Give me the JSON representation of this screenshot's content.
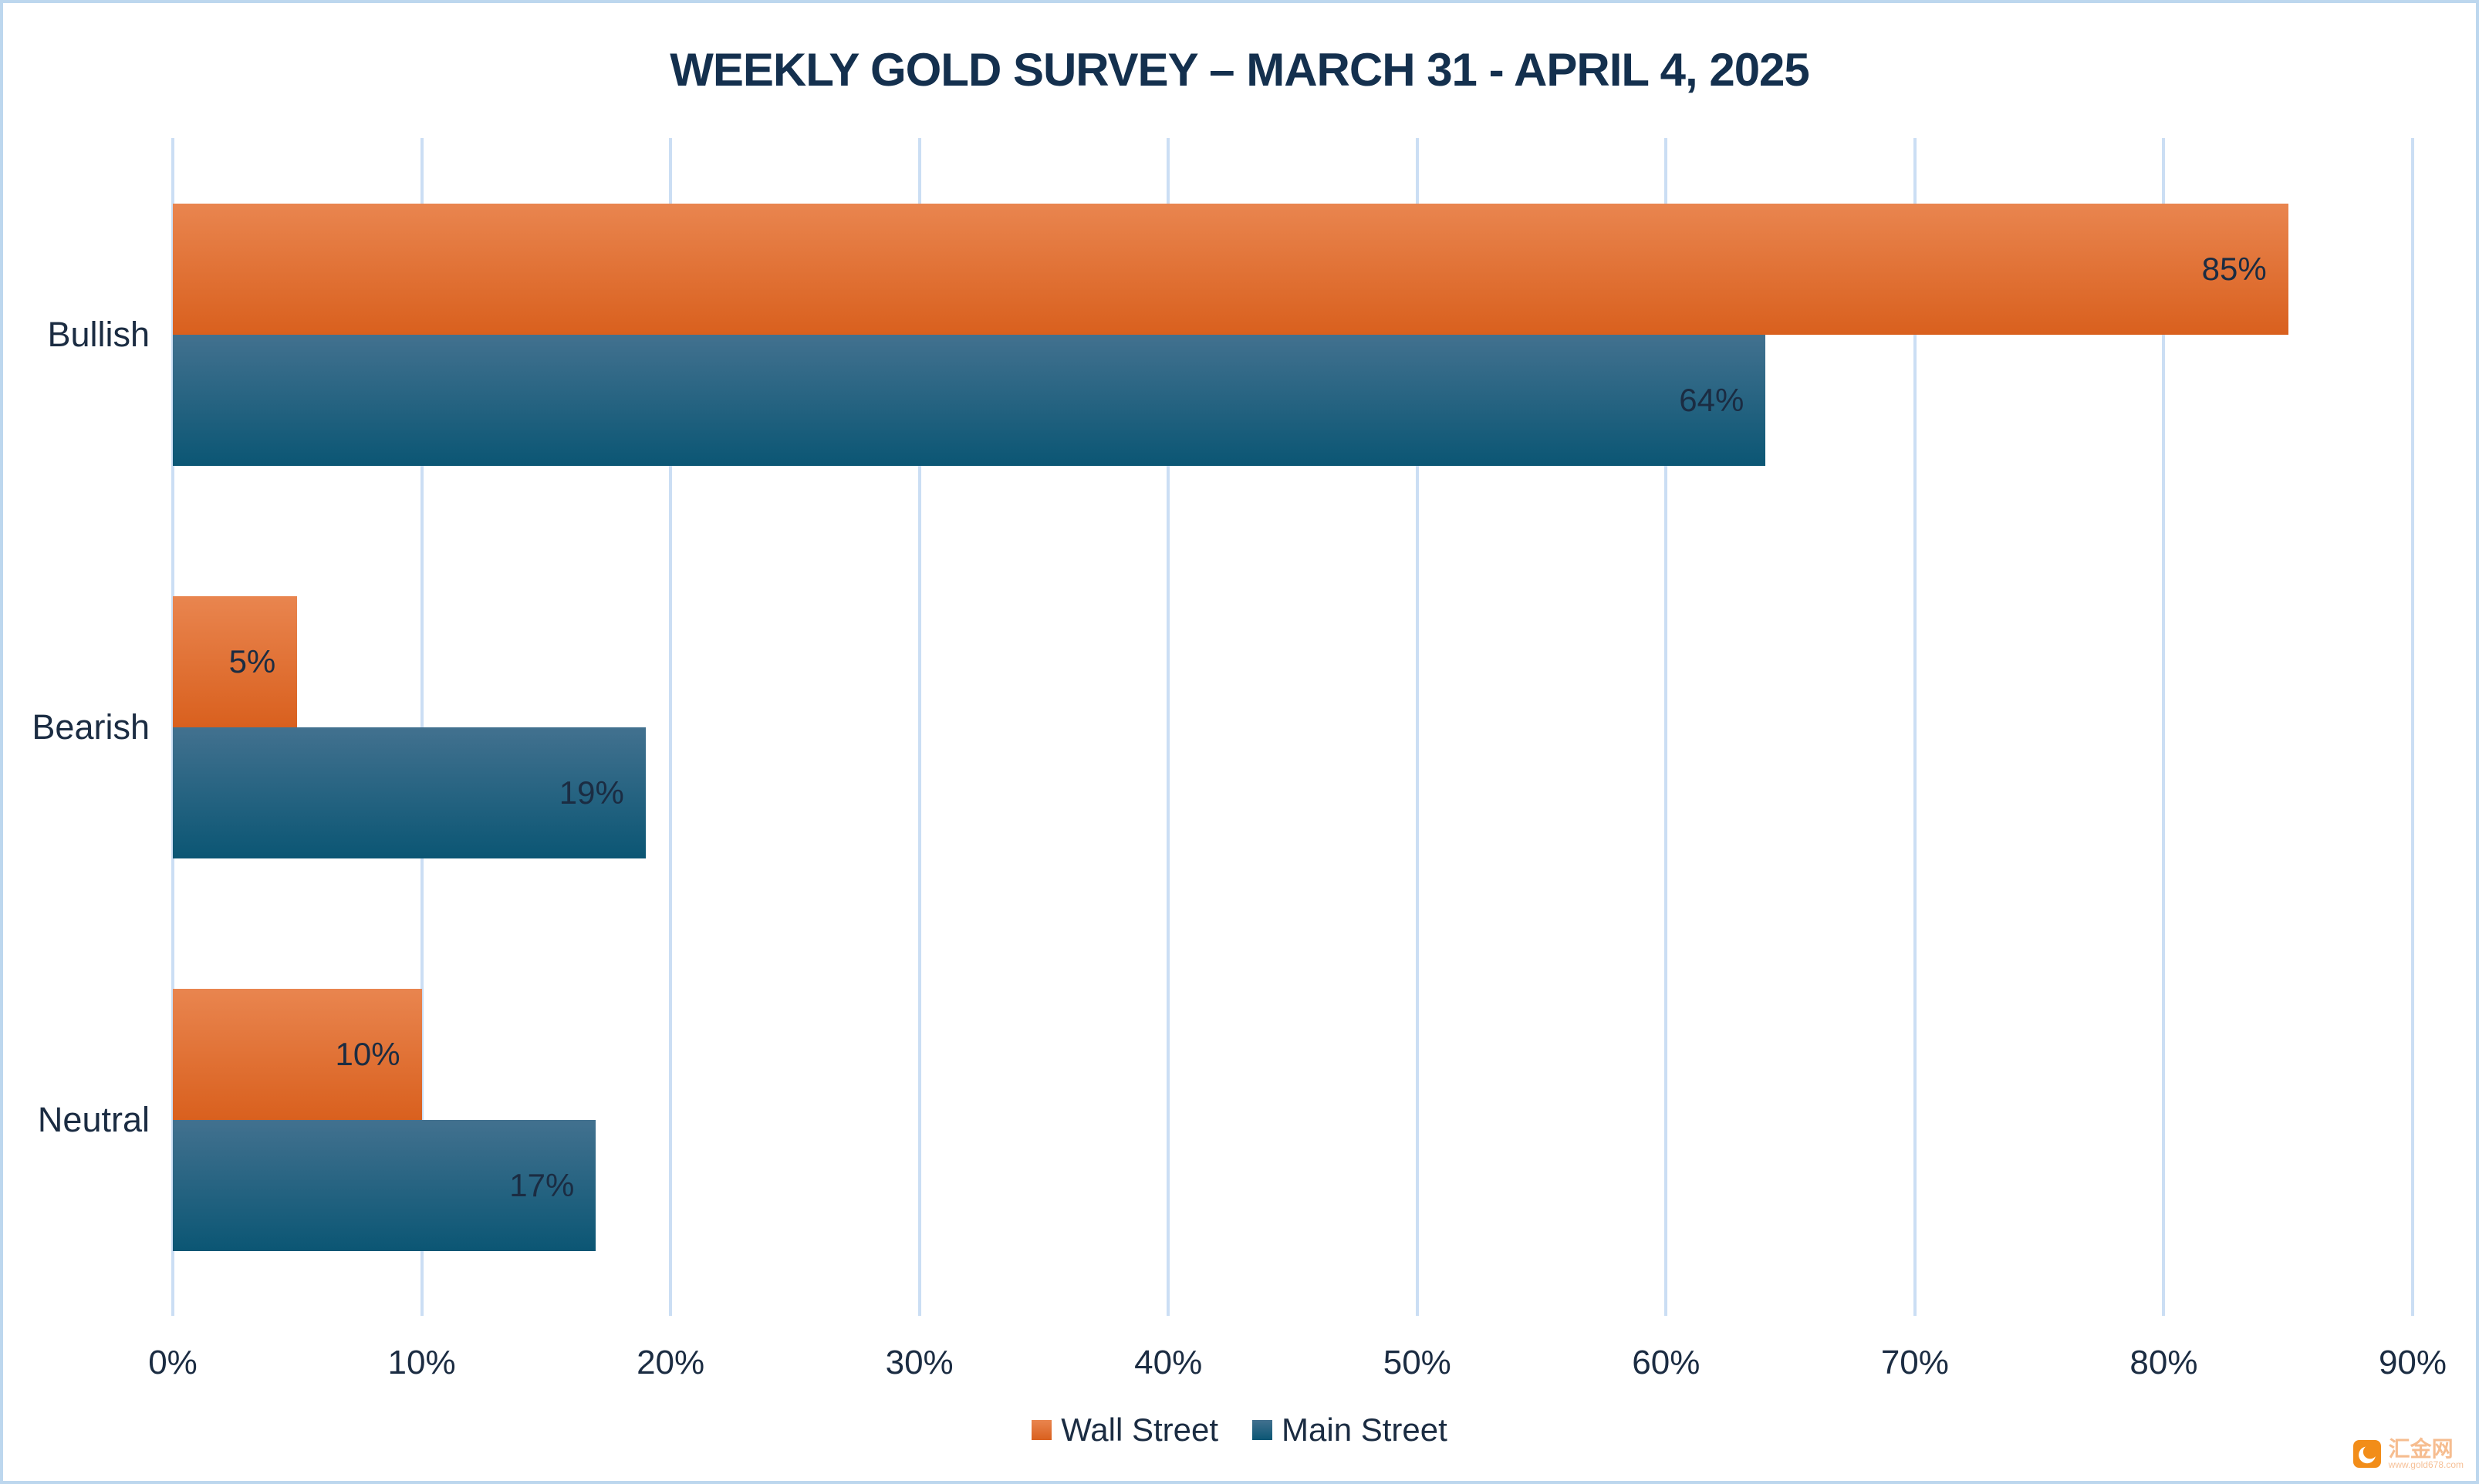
{
  "chart_data": {
    "type": "bar",
    "orientation": "horizontal",
    "title": "WEEKLY GOLD SURVEY – MARCH 31 - APRIL 4, 2025",
    "categories": [
      "Bullish",
      "Bearish",
      "Neutral"
    ],
    "series": [
      {
        "name": "Wall Street",
        "values": [
          85,
          5,
          10
        ],
        "labels": [
          "85%",
          "5%",
          "10%"
        ],
        "color_top": "#E9854F",
        "color_bottom": "#D9601E"
      },
      {
        "name": "Main Street",
        "values": [
          64,
          19,
          17
        ],
        "labels": [
          "64%",
          "19%",
          "17%"
        ],
        "color_top": "#42718F",
        "color_bottom": "#0B5674"
      }
    ],
    "xlabel": "",
    "ylabel": "",
    "xlim": [
      0,
      90
    ],
    "x_ticks": [
      "0%",
      "10%",
      "20%",
      "30%",
      "40%",
      "50%",
      "60%",
      "70%",
      "80%",
      "90%"
    ],
    "grid": "vertical-only",
    "gridline_color": "#CBDEF4",
    "frame_color": "#BDD7EE",
    "text_color": "#1B2C42",
    "title_color": "#14304E",
    "legend_position": "bottom-center",
    "value_label_position": "inside-end"
  },
  "watermark": {
    "site_name": "汇金网",
    "site_url": "www.gold678.com",
    "brand_color": "#F18101"
  }
}
